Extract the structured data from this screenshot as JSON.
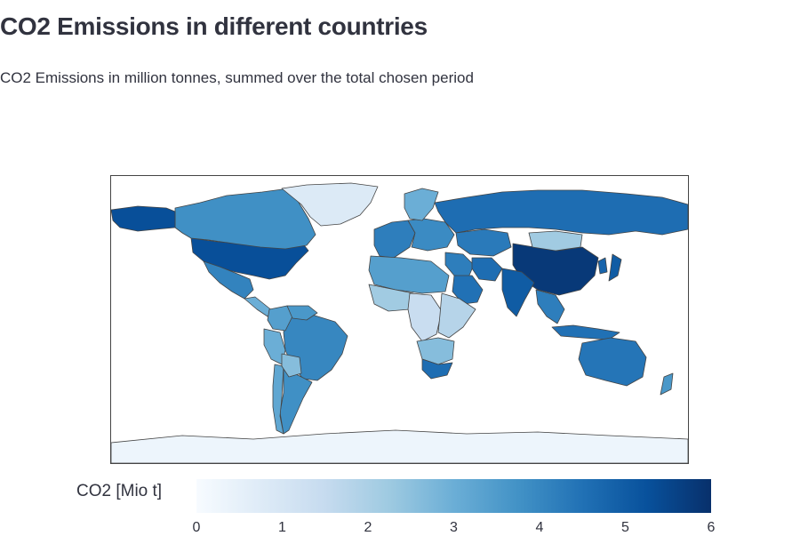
{
  "header": {
    "title": "CO2 Emissions in different countries",
    "subtitle": "CO2 Emissions in million tonnes, summed over the total chosen period"
  },
  "colorbar": {
    "title": "CO2 [Mio t]",
    "ticks": [
      "0",
      "1",
      "2",
      "3",
      "4",
      "5",
      "6"
    ],
    "colorscale": [
      "#f7fbff",
      "#deebf7",
      "#c6dbef",
      "#9ecae1",
      "#6baed6",
      "#4292c6",
      "#2171b5",
      "#08519c",
      "#08306b"
    ],
    "range": [
      0,
      6
    ]
  },
  "chart_data": {
    "type": "choropleth",
    "title": "CO2 Emissions in different countries",
    "subtitle": "CO2 Emissions in million tonnes, summed over the total chosen period",
    "colorbar_title": "CO2 [Mio t]",
    "color_range": [
      0,
      6
    ],
    "colorscale": "Blues",
    "regions": [
      {
        "name": "United States",
        "value": 5.3
      },
      {
        "name": "Canada",
        "value": 3.8
      },
      {
        "name": "Alaska (US)",
        "value": 5.3
      },
      {
        "name": "Greenland",
        "value": 0.8
      },
      {
        "name": "Mexico",
        "value": 4.1
      },
      {
        "name": "Central America",
        "value": 3.0
      },
      {
        "name": "Brazil",
        "value": 4.0
      },
      {
        "name": "Argentina",
        "value": 3.8
      },
      {
        "name": "Chile",
        "value": 3.2
      },
      {
        "name": "Peru",
        "value": 3.0
      },
      {
        "name": "Colombia",
        "value": 3.4
      },
      {
        "name": "Venezuela",
        "value": 3.6
      },
      {
        "name": "Bolivia",
        "value": 2.6
      },
      {
        "name": "Western Europe",
        "value": 4.2
      },
      {
        "name": "Eastern Europe",
        "value": 3.9
      },
      {
        "name": "Scandinavia",
        "value": 3.0
      },
      {
        "name": "Russia",
        "value": 4.6
      },
      {
        "name": "China",
        "value": 5.8
      },
      {
        "name": "India",
        "value": 5.0
      },
      {
        "name": "Mongolia",
        "value": 2.2
      },
      {
        "name": "Kazakhstan",
        "value": 4.3
      },
      {
        "name": "Middle East",
        "value": 4.2
      },
      {
        "name": "Iran",
        "value": 4.6
      },
      {
        "name": "Saudi Arabia",
        "value": 4.5
      },
      {
        "name": "North Africa",
        "value": 3.4
      },
      {
        "name": "West Africa",
        "value": 2.2
      },
      {
        "name": "Central Africa",
        "value": 1.4
      },
      {
        "name": "East Africa",
        "value": 1.8
      },
      {
        "name": "Southern Africa",
        "value": 2.6
      },
      {
        "name": "South Africa",
        "value": 4.6
      },
      {
        "name": "Southeast Asia",
        "value": 4.2
      },
      {
        "name": "Indonesia",
        "value": 4.5
      },
      {
        "name": "Japan",
        "value": 5.0
      },
      {
        "name": "Korea",
        "value": 4.8
      },
      {
        "name": "Australia",
        "value": 4.4
      },
      {
        "name": "New Zealand",
        "value": 3.6
      },
      {
        "name": "Antarctica",
        "value": 0.3
      }
    ]
  }
}
